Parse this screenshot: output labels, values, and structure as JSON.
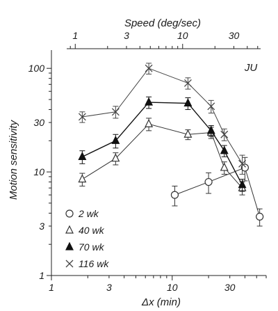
{
  "chart_data": {
    "type": "line",
    "panel_label": "JU",
    "xlabel": "Δx (min)",
    "ylabel": "Motion sensitivity",
    "top_xlabel": "Speed (deg/sec)",
    "x_scale": "log",
    "y_scale": "log",
    "xlim": [
      1,
      60
    ],
    "ylim": [
      1,
      150
    ],
    "top_xlim": [
      0.6,
      60
    ],
    "x_ticks": [
      1,
      3,
      10,
      30
    ],
    "x_tick_labels": [
      "1",
      "3",
      "10",
      "30"
    ],
    "y_ticks": [
      1,
      3,
      10,
      30,
      100
    ],
    "y_tick_labels": [
      "1",
      "3",
      "10",
      "30",
      "100"
    ],
    "top_ticks": [
      1,
      3,
      10,
      30
    ],
    "top_tick_labels": [
      "1",
      "3",
      "10",
      "30"
    ],
    "legend_position": "bottom-left",
    "series": [
      {
        "name": "2 wk",
        "marker": "open-circle",
        "color": "#333333",
        "x": [
          10.5,
          20,
          40,
          53
        ],
        "y": [
          6,
          8,
          11,
          3.7
        ],
        "err": [
          1.3,
          1.8,
          2.8,
          0.7
        ]
      },
      {
        "name": "40 wk",
        "marker": "open-triangle",
        "color": "#333333",
        "x": [
          1.8,
          3.4,
          6.4,
          13.5,
          21,
          27,
          38
        ],
        "y": [
          8.5,
          13.5,
          29,
          23,
          24,
          11,
          7
        ],
        "err": [
          1.2,
          1.8,
          4,
          2.5,
          3,
          1.5,
          1
        ]
      },
      {
        "name": "70 wk",
        "marker": "filled-triangle",
        "color": "#111111",
        "x": [
          1.8,
          3.4,
          6.4,
          13.5,
          21,
          27,
          38
        ],
        "y": [
          14,
          20,
          47,
          46,
          25,
          16,
          7.5
        ],
        "err": [
          2,
          3,
          6,
          6,
          3,
          2,
          1
        ]
      },
      {
        "name": "116 wk",
        "marker": "cross",
        "color": "#444444",
        "x": [
          1.8,
          3.4,
          6.4,
          13.5,
          21,
          27,
          38
        ],
        "y": [
          34,
          38,
          100,
          72,
          43,
          23,
          12
        ],
        "err": [
          4,
          5,
          12,
          9,
          6,
          3,
          2.5
        ]
      }
    ]
  }
}
